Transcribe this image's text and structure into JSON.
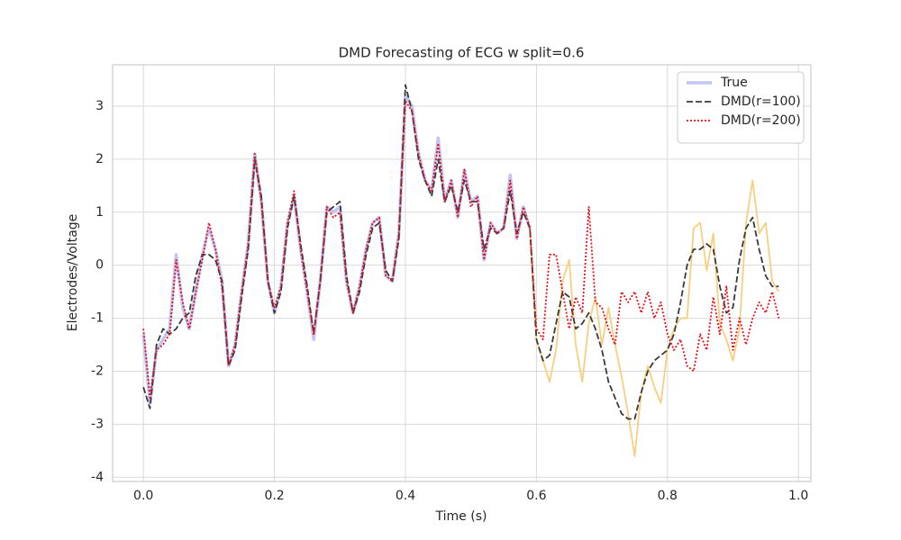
{
  "chart_data": {
    "type": "line",
    "title": "DMD Forecasting of ECG w split=0.6",
    "x_label": "Time (s)",
    "y_label": "Electrodes/Voltage",
    "xlim": [
      -0.047,
      1.019
    ],
    "ylim": [
      -4.08,
      3.78
    ],
    "xticks": [
      {
        "value": 0,
        "label": "0.0"
      },
      0.2,
      0.4,
      0.6,
      0.8,
      {
        "value": 1,
        "label": "1.0"
      }
    ],
    "yticks": [
      -4,
      -3,
      -2,
      -1,
      0,
      1,
      2,
      3
    ],
    "grid": true,
    "legend": "upper right",
    "x": [
      0,
      0.01,
      0.02,
      0.03,
      0.04,
      0.05,
      0.06,
      0.07,
      0.08,
      0.09,
      0.1,
      0.11,
      0.12,
      0.13,
      0.14,
      0.15,
      0.16,
      0.17,
      0.18,
      0.19,
      0.2,
      0.21,
      0.22,
      0.23,
      0.24,
      0.25,
      0.26,
      0.27,
      0.28,
      0.29,
      0.3,
      0.31,
      0.32,
      0.33,
      0.34,
      0.35,
      0.36,
      0.37,
      0.38,
      0.39,
      0.4,
      0.41,
      0.42,
      0.43,
      0.44,
      0.45,
      0.46,
      0.47,
      0.48,
      0.49,
      0.5,
      0.51,
      0.52,
      0.53,
      0.54,
      0.55,
      0.56,
      0.57,
      0.58,
      0.59,
      0.6,
      0.61,
      0.62,
      0.63,
      0.64,
      0.65,
      0.66,
      0.67,
      0.68,
      0.69,
      0.7,
      0.71,
      0.72,
      0.73,
      0.74,
      0.75,
      0.76,
      0.77,
      0.78,
      0.79,
      0.8,
      0.81,
      0.82,
      0.83,
      0.84,
      0.85,
      0.86,
      0.87,
      0.88,
      0.89,
      0.9,
      0.91,
      0.92,
      0.93,
      0.94,
      0.95,
      0.96,
      0.97
    ],
    "series": [
      {
        "name": "True",
        "color": "#c4c4f4",
        "style": "solid",
        "linewidth": 3.5,
        "values": [
          -1.3,
          -2.6,
          -1.6,
          -1.4,
          -1.2,
          0.2,
          -0.8,
          -1.2,
          -0.5,
          0.2,
          0.7,
          0.3,
          -0.3,
          -1.9,
          -1.5,
          -0.5,
          0.4,
          2.1,
          1.2,
          -0.3,
          -0.9,
          -0.4,
          0.8,
          1.3,
          0.3,
          -0.5,
          -1.4,
          -0.3,
          1.1,
          1.0,
          1.1,
          -0.3,
          -0.9,
          -0.4,
          0.3,
          0.8,
          0.9,
          -0.2,
          -0.3,
          0.6,
          3.2,
          3.0,
          2.1,
          1.6,
          1.4,
          2.4,
          1.2,
          1.6,
          0.9,
          1.8,
          1.2,
          1.3,
          0.1,
          0.8,
          0.6,
          0.7,
          1.7,
          0.5,
          1.1,
          0.7,
          null,
          null,
          null,
          null,
          null,
          null,
          null,
          null,
          null,
          null,
          null,
          null,
          null,
          null,
          null,
          null,
          null,
          null,
          null,
          null,
          null,
          null,
          null,
          null,
          null,
          null,
          null,
          null,
          null,
          null,
          null,
          null,
          null,
          null,
          null,
          null,
          null,
          null
        ]
      },
      {
        "color": "#f7cf7e",
        "style": "solid",
        "linewidth": 1.8,
        "values": [
          null,
          null,
          null,
          null,
          null,
          null,
          null,
          null,
          null,
          null,
          null,
          null,
          null,
          null,
          null,
          null,
          null,
          null,
          null,
          null,
          null,
          null,
          null,
          null,
          null,
          null,
          null,
          null,
          null,
          null,
          null,
          null,
          null,
          null,
          null,
          null,
          null,
          null,
          null,
          null,
          null,
          null,
          null,
          null,
          null,
          null,
          null,
          null,
          null,
          null,
          null,
          null,
          null,
          null,
          null,
          null,
          null,
          null,
          null,
          0.7,
          -1.4,
          -1.8,
          -2.2,
          -1.6,
          -0.3,
          0.1,
          -1.5,
          -2.2,
          -1.1,
          -0.6,
          -1.5,
          -0.8,
          -1.5,
          -2.1,
          -2.8,
          -3.6,
          -2.4,
          -1.9,
          -2.3,
          -2.6,
          -1.6,
          -1.2,
          -1.0,
          -1.0,
          0.7,
          0.8,
          -0.1,
          0.6,
          -1.1,
          -1.4,
          -1.8,
          -1.2,
          0.8,
          1.6,
          0.6,
          0.8,
          -0.3,
          -0.5
        ]
      },
      {
        "name": "DMD(r=100)",
        "color": "#3a3a3a",
        "style": "dashed",
        "linewidth": 1.8,
        "values": [
          -2.3,
          -2.7,
          -1.5,
          -1.2,
          -1.3,
          -1.2,
          -1.0,
          -0.9,
          -0.2,
          0.2,
          0.2,
          0.1,
          -0.3,
          -1.9,
          -1.6,
          -0.6,
          0.3,
          2.0,
          1.3,
          -0.3,
          -0.9,
          -0.5,
          0.7,
          1.3,
          0.4,
          -0.4,
          -1.3,
          -0.3,
          1.0,
          1.1,
          1.2,
          -0.2,
          -0.9,
          -0.5,
          0.2,
          0.7,
          0.8,
          -0.1,
          -0.3,
          0.5,
          3.4,
          2.9,
          2.0,
          1.6,
          1.3,
          2.0,
          1.2,
          1.5,
          1.0,
          1.6,
          1.2,
          1.2,
          0.3,
          0.7,
          0.6,
          0.7,
          1.4,
          0.6,
          1.0,
          0.7,
          -1.4,
          -1.8,
          -1.7,
          -1.1,
          -0.5,
          -0.6,
          -1.2,
          -1.1,
          -0.9,
          -1.2,
          -1.6,
          -2.2,
          -2.5,
          -2.8,
          -2.9,
          -2.9,
          -2.4,
          -2.0,
          -1.8,
          -1.7,
          -1.6,
          -1.3,
          -0.7,
          0.0,
          0.3,
          0.3,
          0.4,
          0.3,
          -0.4,
          -0.9,
          -0.8,
          0.1,
          0.7,
          0.9,
          0.3,
          -0.2,
          -0.4,
          -0.4
        ]
      },
      {
        "name": "DMD(r=200)",
        "color": "#e8101a",
        "style": "dotted",
        "linewidth": 1.8,
        "values": [
          -1.2,
          -2.5,
          -1.6,
          -1.5,
          -1.3,
          0.1,
          -0.7,
          -1.2,
          -0.5,
          0.1,
          0.8,
          0.3,
          -0.4,
          -1.9,
          -1.5,
          -0.5,
          0.4,
          2.1,
          1.2,
          -0.3,
          -0.8,
          -0.4,
          0.8,
          1.4,
          0.3,
          -0.5,
          -1.3,
          -0.3,
          1.1,
          0.9,
          1.0,
          -0.3,
          -0.9,
          -0.4,
          0.3,
          0.8,
          0.9,
          -0.2,
          -0.3,
          0.6,
          3.1,
          2.9,
          2.1,
          1.6,
          1.4,
          2.3,
          1.2,
          1.6,
          0.9,
          1.8,
          1.1,
          1.3,
          0.1,
          0.8,
          0.6,
          0.7,
          1.6,
          0.5,
          1.1,
          0.7,
          -1.2,
          -1.4,
          0.2,
          0.2,
          -0.5,
          -1.2,
          -0.6,
          -0.9,
          1.1,
          -0.7,
          -0.8,
          -1.2,
          -1.5,
          -0.5,
          -0.7,
          -0.5,
          -0.9,
          -0.5,
          -1.0,
          -0.7,
          -1.3,
          -1.6,
          -1.4,
          -1.9,
          -2.0,
          -1.3,
          -1.6,
          -0.6,
          -1.3,
          -0.4,
          -1.6,
          -1.0,
          -1.5,
          -1.0,
          -0.7,
          -0.9,
          -0.5,
          -1.0
        ]
      }
    ]
  }
}
